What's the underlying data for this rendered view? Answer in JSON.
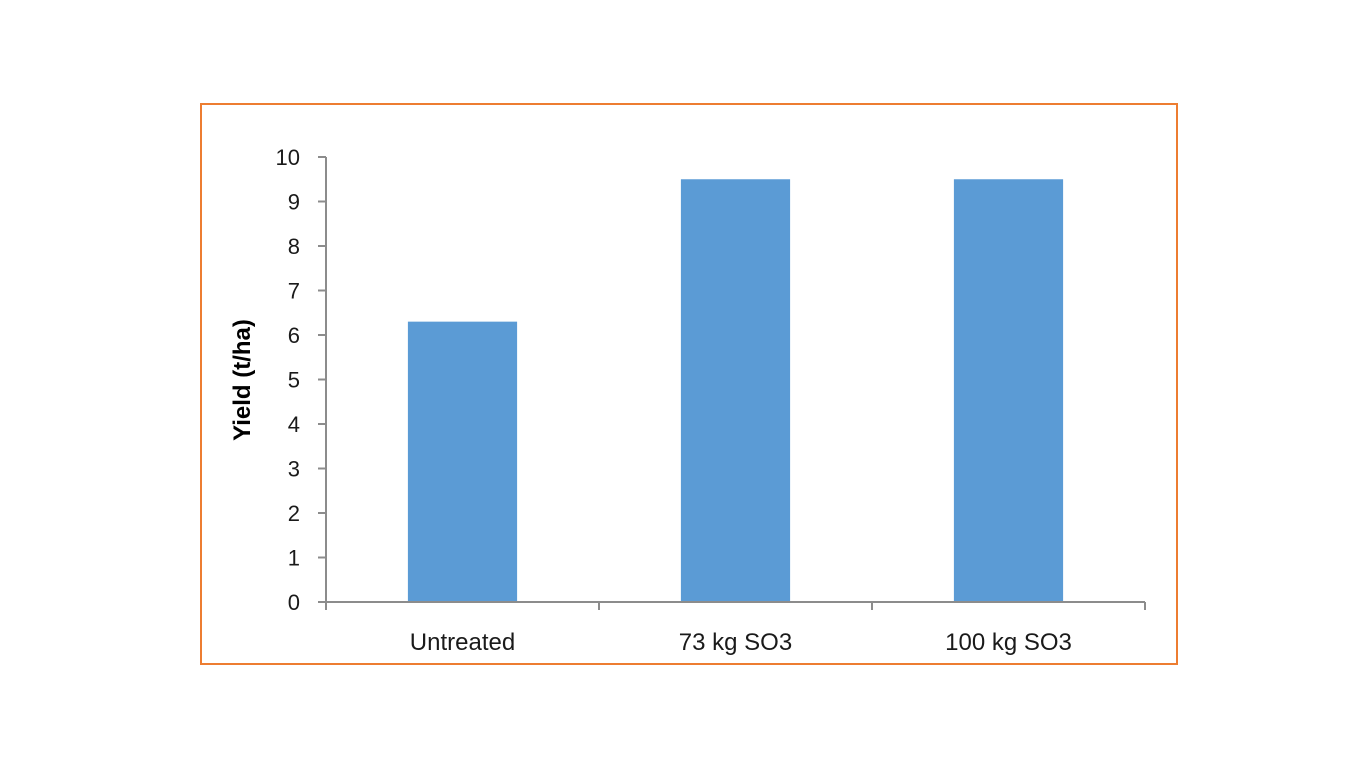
{
  "chart_data": {
    "type": "bar",
    "title": "",
    "xlabel": "",
    "ylabel": "Yield (t/ha)",
    "categories": [
      "Untreated",
      "73 kg SO3",
      "100 kg SO3"
    ],
    "values": [
      6.3,
      9.5,
      9.5
    ],
    "ylim": [
      0,
      10
    ],
    "yticks": [
      0,
      1,
      2,
      3,
      4,
      5,
      6,
      7,
      8,
      9,
      10
    ],
    "grid": false,
    "legend": "none",
    "colors": {
      "bar": "#5B9BD5",
      "axis": "#8C8C8C",
      "frame": "#ED7D31"
    }
  }
}
